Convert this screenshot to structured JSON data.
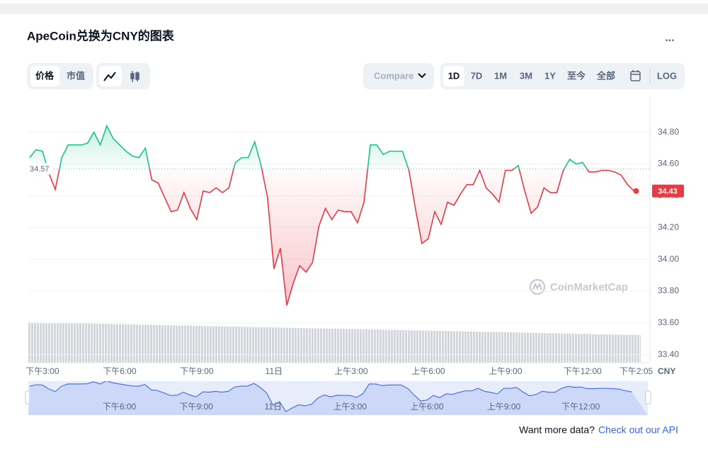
{
  "title": "ApeCoin兑换为CNY的图表",
  "menu": "...",
  "tabs": [
    "价格",
    "市值"
  ],
  "compare": "Compare",
  "ranges": [
    "1D",
    "7D",
    "1M",
    "3M",
    "1Y",
    "至今",
    "全部"
  ],
  "log": "LOG",
  "watermark": "CoinMarketCap",
  "footer": {
    "text": "Want more data?",
    "link": "Check out our API"
  },
  "chart_data": {
    "type": "line",
    "x": [
      14.5,
      14.75,
      15,
      15.25,
      15.5,
      15.75,
      16,
      16.25,
      16.5,
      16.75,
      17,
      17.25,
      17.5,
      17.75,
      18,
      18.25,
      18.5,
      18.75,
      19,
      19.25,
      19.5,
      19.75,
      20,
      20.25,
      20.5,
      20.75,
      21,
      21.25,
      21.5,
      21.75,
      22,
      22.25,
      22.5,
      22.75,
      23,
      23.25,
      23.5,
      23.75,
      24,
      24.25,
      24.5,
      24.75,
      25,
      25.25,
      25.5,
      25.75,
      26,
      26.25,
      26.5,
      26.75,
      27,
      27.25,
      27.5,
      27.75,
      28,
      28.25,
      28.5,
      28.75,
      29,
      29.25,
      29.5,
      29.75,
      30,
      30.25,
      30.5,
      30.75,
      31,
      31.25,
      31.5,
      31.75,
      32,
      32.25,
      32.5,
      32.75,
      33,
      33.25,
      33.5,
      33.75,
      34,
      34.25,
      34.5,
      34.75,
      35,
      35.25,
      35.5,
      35.75,
      36,
      36.25,
      36.5,
      36.75,
      37,
      37.25,
      37.5,
      37.75,
      38
    ],
    "values": [
      34.64,
      34.69,
      34.68,
      34.54,
      34.44,
      34.64,
      34.72,
      34.72,
      34.72,
      34.73,
      34.8,
      34.72,
      34.84,
      34.76,
      34.72,
      34.68,
      34.65,
      34.64,
      34.7,
      34.5,
      34.48,
      34.39,
      34.3,
      34.31,
      34.42,
      34.32,
      34.25,
      34.43,
      34.42,
      34.45,
      34.42,
      34.45,
      34.61,
      34.64,
      34.64,
      34.74,
      34.59,
      34.39,
      33.94,
      34.07,
      33.71,
      33.85,
      33.96,
      33.92,
      33.98,
      34.21,
      34.32,
      34.25,
      34.31,
      34.3,
      34.3,
      34.23,
      34.36,
      34.72,
      34.72,
      34.66,
      34.68,
      34.68,
      34.68,
      34.56,
      34.32,
      34.1,
      34.13,
      34.3,
      34.22,
      34.36,
      34.34,
      34.41,
      34.47,
      34.47,
      34.56,
      34.45,
      34.41,
      34.36,
      34.56,
      34.56,
      34.59,
      34.43,
      34.29,
      34.33,
      34.45,
      34.42,
      34.42,
      34.56,
      34.63,
      34.6,
      34.61,
      34.55,
      34.55,
      34.56,
      34.56,
      34.55,
      34.53,
      34.47,
      34.43
    ],
    "baseline": 34.57,
    "colors": {
      "above": "#16c784",
      "below": "#ea3943"
    },
    "xlim": [
      14.45,
      38.62
    ],
    "ylim": [
      33.35,
      35.03
    ],
    "xticks": [
      {
        "value": 15,
        "label": "下午3:00"
      },
      {
        "value": 18,
        "label": "下午6:00"
      },
      {
        "value": 21,
        "label": "下午9:00"
      },
      {
        "value": 24,
        "label": "11日"
      },
      {
        "value": 27,
        "label": "上午3:00"
      },
      {
        "value": 30,
        "label": "上午6:00"
      },
      {
        "value": 33,
        "label": "上午9:00"
      },
      {
        "value": 36,
        "label": "下午12:00"
      },
      {
        "value": 38.083,
        "label": "下午2:05"
      }
    ],
    "yticks": [
      {
        "value": 33.4,
        "label": "33.40"
      },
      {
        "value": 33.6,
        "label": "33.60"
      },
      {
        "value": 33.8,
        "label": "33.80"
      },
      {
        "value": 34,
        "label": "34.00"
      },
      {
        "value": 34.2,
        "label": "34.20"
      },
      {
        "value": 34.4,
        "label": "34.40"
      },
      {
        "value": 34.6,
        "label": "34.60"
      },
      {
        "value": 34.8,
        "label": "34.80"
      }
    ],
    "y_unit": "CNY",
    "grid": true
  }
}
